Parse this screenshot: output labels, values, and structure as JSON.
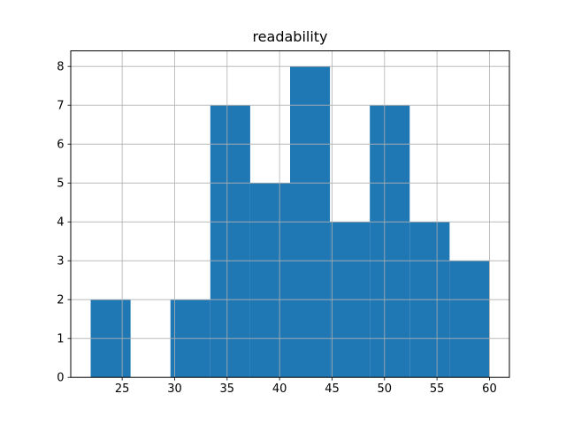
{
  "title": "readability",
  "colors": {
    "bar": "#1f77b4",
    "grid": "#b0b0b0",
    "spine": "#000000",
    "text": "#000000",
    "background": "#ffffff"
  },
  "chart_data": {
    "type": "bar",
    "subtype": "histogram",
    "title": "readability",
    "xlabel": "",
    "ylabel": "",
    "bin_edges": [
      22.0,
      25.8,
      29.6,
      33.4,
      37.2,
      41.0,
      44.8,
      48.6,
      52.4,
      56.2,
      60.0
    ],
    "counts": [
      2,
      0,
      2,
      7,
      5,
      8,
      4,
      7,
      4,
      3
    ],
    "xticks": [
      25,
      30,
      35,
      40,
      45,
      50,
      55,
      60
    ],
    "yticks": [
      0,
      1,
      2,
      3,
      4,
      5,
      6,
      7,
      8
    ],
    "xlim": [
      20.1,
      61.9
    ],
    "ylim": [
      0,
      8.4
    ],
    "grid": true,
    "grid_above_bars": true,
    "legend": null,
    "bar_color": "#1f77b4"
  }
}
